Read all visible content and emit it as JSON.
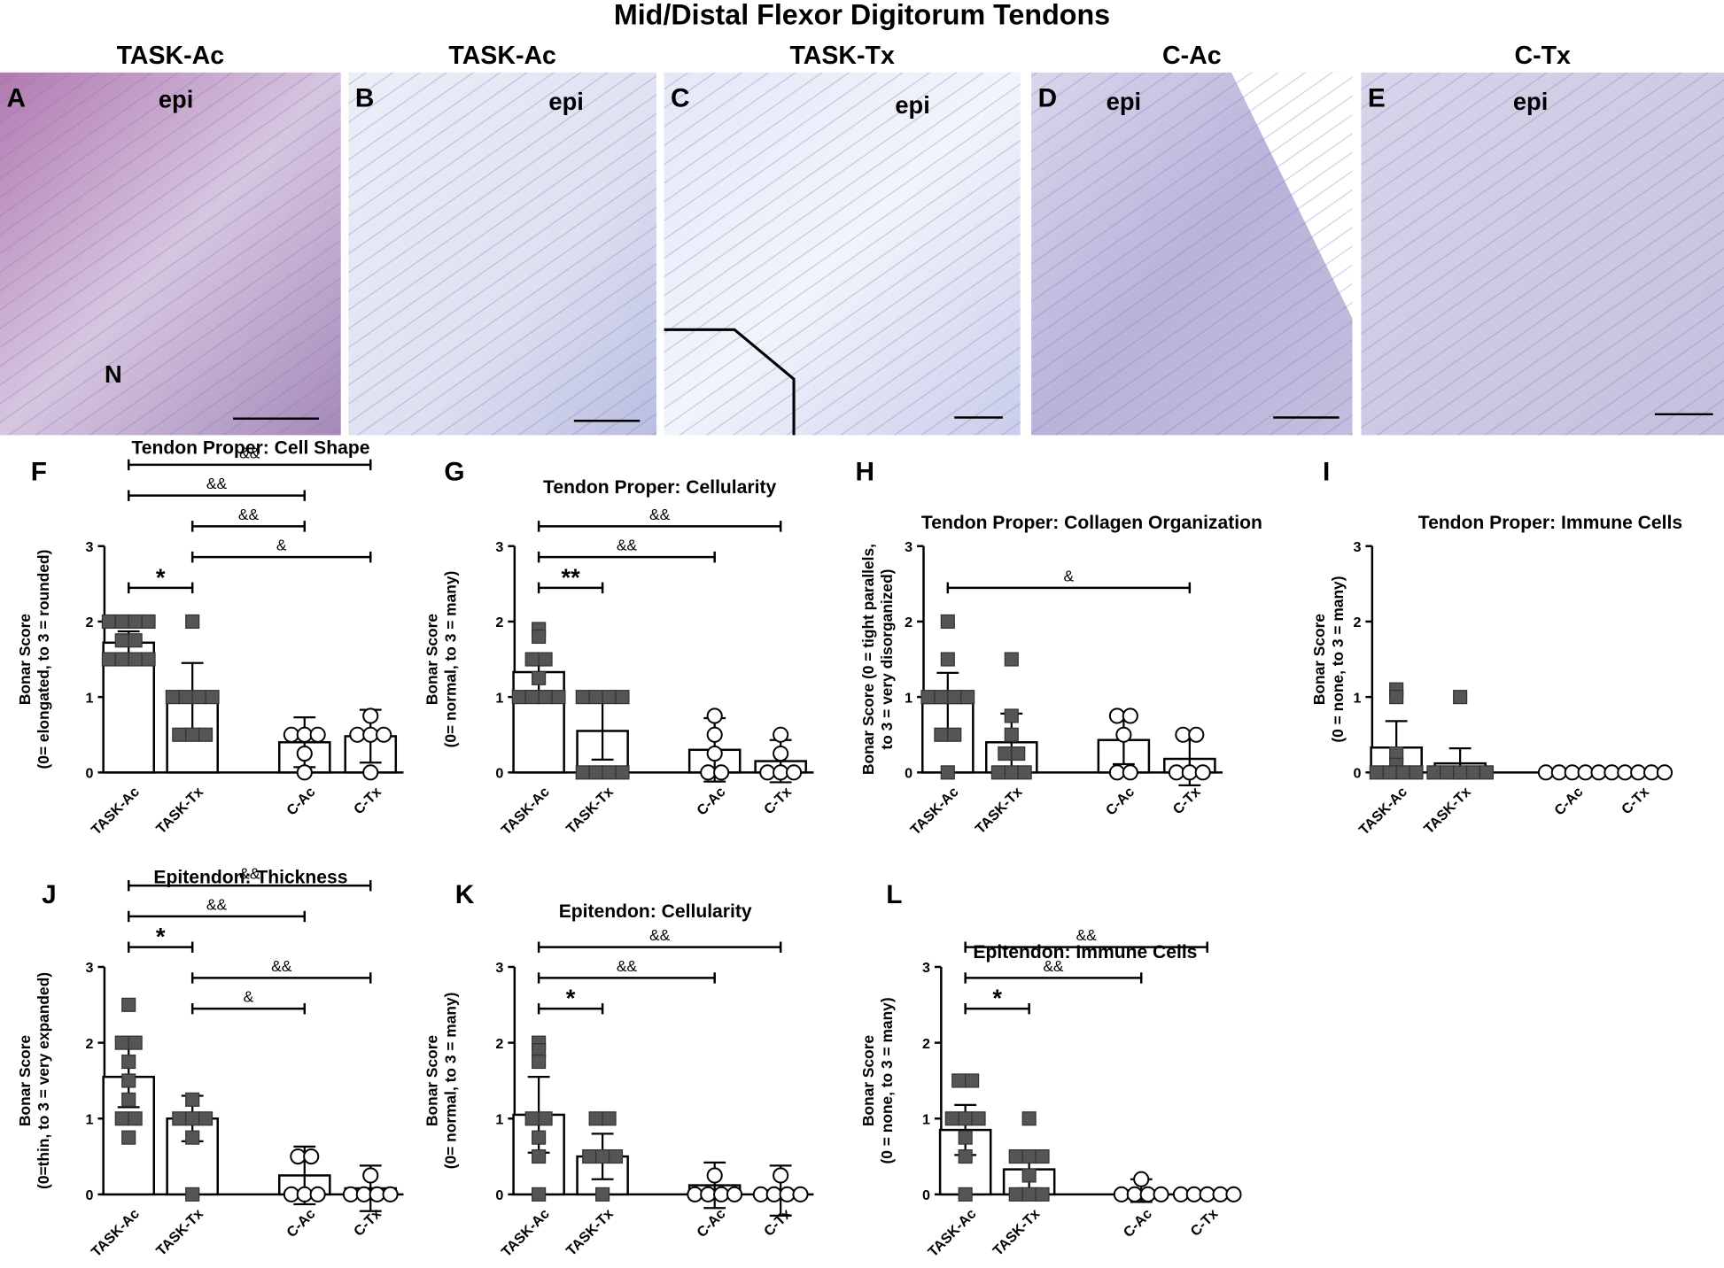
{
  "title": "Mid/Distal Flexor Digitorum Tendons",
  "image_panels": [
    {
      "letter": "A",
      "label": "TASK-Ac",
      "annotations": [
        "epi",
        "N"
      ]
    },
    {
      "letter": "B",
      "label": "TASK-Ac",
      "annotations": [
        "epi"
      ]
    },
    {
      "letter": "C",
      "label": "TASK-Tx",
      "annotations": [
        "epi"
      ]
    },
    {
      "letter": "D",
      "label": "C-Ac",
      "annotations": [
        "epi"
      ]
    },
    {
      "letter": "E",
      "label": "C-Tx",
      "annotations": [
        "epi"
      ]
    }
  ],
  "chart_data": [
    {
      "type": "bar",
      "letter": "F",
      "title": "Tendon Proper: Cell Shape",
      "ylabel": [
        "Bonar Score",
        "(0= elongated, to 3 = rounded)"
      ],
      "categories": [
        "TASK-Ac",
        "TASK-Tx",
        "C-Ac",
        "C-Tx"
      ],
      "values": [
        1.72,
        1.0,
        0.4,
        0.48
      ],
      "errors": [
        0.15,
        0.45,
        0.33,
        0.35
      ],
      "points": [
        [
          2,
          2,
          2,
          2,
          1.75,
          1.75,
          1.5,
          1.5,
          1.5,
          1.5
        ],
        [
          2,
          1,
          1,
          1,
          1,
          0.5,
          0.5,
          0.5
        ],
        [
          0.5,
          0.5,
          0.5,
          0.25,
          0
        ],
        [
          0.75,
          0.5,
          0.5,
          0.5,
          0
        ]
      ],
      "markers": [
        "square",
        "square",
        "circle",
        "circle"
      ],
      "comparisons": [
        {
          "from": 0,
          "to": 3,
          "label": "&&"
        },
        {
          "from": 0,
          "to": 2,
          "label": "&&"
        },
        {
          "from": 1,
          "to": 2,
          "label": "&&"
        },
        {
          "from": 1,
          "to": 3,
          "label": "&"
        },
        {
          "from": 0,
          "to": 1,
          "label": "*"
        }
      ],
      "ylim": [
        0,
        3
      ],
      "yticks": [
        0,
        1,
        2,
        3
      ]
    },
    {
      "type": "bar",
      "letter": "G",
      "title": "Tendon Proper: Cellularity",
      "ylabel": [
        "Bonar Score",
        "(0= normal, to 3 = many)"
      ],
      "categories": [
        "TASK-Ac",
        "TASK-Tx",
        "C-Ac",
        "C-Tx"
      ],
      "values": [
        1.33,
        0.55,
        0.3,
        0.15
      ],
      "errors": [
        0.25,
        0.38,
        0.42,
        0.28
      ],
      "points": [
        [
          1.9,
          1.8,
          1.5,
          1.5,
          1.25,
          1,
          1,
          1,
          1
        ],
        [
          1,
          1,
          1,
          1,
          0,
          0,
          0,
          0
        ],
        [
          0.75,
          0.5,
          0.25,
          0,
          0
        ],
        [
          0.5,
          0.25,
          0,
          0,
          0
        ]
      ],
      "markers": [
        "square",
        "square",
        "circle",
        "circle"
      ],
      "comparisons": [
        {
          "from": 0,
          "to": 3,
          "label": "&&"
        },
        {
          "from": 0,
          "to": 2,
          "label": "&&"
        },
        {
          "from": 0,
          "to": 1,
          "label": "**"
        }
      ],
      "ylim": [
        0,
        3
      ],
      "yticks": [
        0,
        1,
        2,
        3
      ]
    },
    {
      "type": "bar",
      "letter": "H",
      "title": "Tendon Proper: Collagen Organization",
      "ylabel": [
        "Bonar Score (0 = tight parallels,",
        "to 3 = very disorganized)"
      ],
      "categories": [
        "TASK-Ac",
        "TASK-Tx",
        "C-Ac",
        "C-Tx"
      ],
      "values": [
        0.92,
        0.4,
        0.43,
        0.18
      ],
      "errors": [
        0.4,
        0.38,
        0.32,
        0.35
      ],
      "points": [
        [
          2,
          1.5,
          1,
          1,
          1,
          1,
          0.5,
          0.5,
          0
        ],
        [
          1.5,
          0.75,
          0.5,
          0.25,
          0.25,
          0,
          0,
          0
        ],
        [
          0.75,
          0.75,
          0.5,
          0,
          0
        ],
        [
          0.5,
          0.5,
          0,
          0,
          0
        ]
      ],
      "markers": [
        "square",
        "square",
        "circle",
        "circle"
      ],
      "comparisons": [
        {
          "from": 0,
          "to": 3,
          "label": "&"
        }
      ],
      "ylim": [
        0,
        3
      ],
      "yticks": [
        0,
        1,
        2,
        3
      ]
    },
    {
      "type": "bar",
      "letter": "I",
      "title": "Tendon Proper:  Immune Cells",
      "ylabel": [
        "Bonar Score",
        "(0 = none, to 3 = many)"
      ],
      "categories": [
        "TASK-Ac",
        "TASK-Tx",
        "C-Ac",
        "C-Tx"
      ],
      "values": [
        0.33,
        0.12,
        0,
        0
      ],
      "errors": [
        0.35,
        0.2,
        0,
        0
      ],
      "points": [
        [
          1.1,
          1,
          0.25,
          0.1,
          0,
          0,
          0,
          0
        ],
        [
          1,
          0,
          0,
          0,
          0,
          0
        ],
        [
          0,
          0,
          0,
          0,
          0
        ],
        [
          0,
          0,
          0,
          0,
          0
        ]
      ],
      "markers": [
        "square",
        "square",
        "circle",
        "circle"
      ],
      "comparisons": [],
      "ylim": [
        0,
        3
      ],
      "yticks": [
        0,
        1,
        2,
        3
      ]
    },
    {
      "type": "bar",
      "letter": "J",
      "title": "Epitendon: Thickness",
      "ylabel": [
        "Bonar Score",
        "(0=thin, to 3 = very expanded)"
      ],
      "categories": [
        "TASK-Ac",
        "TASK-Tx",
        "C-Ac",
        "C-Tx"
      ],
      "values": [
        1.55,
        1.0,
        0.25,
        0.08
      ],
      "errors": [
        0.4,
        0.3,
        0.38,
        0.3
      ],
      "points": [
        [
          2.5,
          2,
          2,
          1.75,
          1.5,
          1.25,
          1,
          1,
          0.75
        ],
        [
          1.25,
          1,
          1,
          1,
          0.75,
          0
        ],
        [
          0.5,
          0.5,
          0,
          0,
          0
        ],
        [
          0.25,
          0,
          0,
          0,
          0
        ]
      ],
      "markers": [
        "square",
        "square",
        "circle",
        "circle"
      ],
      "comparisons": [
        {
          "from": 0,
          "to": 3,
          "label": "&&"
        },
        {
          "from": 0,
          "to": 2,
          "label": "&&"
        },
        {
          "from": 0,
          "to": 1,
          "label": "*"
        },
        {
          "from": 1,
          "to": 3,
          "label": "&&"
        },
        {
          "from": 1,
          "to": 2,
          "label": "&"
        }
      ],
      "ylim": [
        0,
        3
      ],
      "yticks": [
        0,
        1,
        2,
        3
      ]
    },
    {
      "type": "bar",
      "letter": "K",
      "title": "Epitendon: Cellularity",
      "ylabel": [
        "Bonar Score",
        "(0= normal, to 3 = many)"
      ],
      "categories": [
        "TASK-Ac",
        "TASK-Tx",
        "C-Ac",
        "C-Tx"
      ],
      "values": [
        1.05,
        0.5,
        0.12,
        0.05
      ],
      "errors": [
        0.5,
        0.3,
        0.3,
        0.33
      ],
      "points": [
        [
          2,
          1.9,
          1.75,
          1,
          1,
          0.75,
          0.5,
          0
        ],
        [
          1,
          1,
          0.5,
          0.5,
          0.5,
          0
        ],
        [
          0.25,
          0,
          0,
          0,
          0
        ],
        [
          0.25,
          0,
          0,
          0,
          0
        ]
      ],
      "markers": [
        "square",
        "square",
        "circle",
        "circle"
      ],
      "comparisons": [
        {
          "from": 0,
          "to": 3,
          "label": "&&"
        },
        {
          "from": 0,
          "to": 2,
          "label": "&&"
        },
        {
          "from": 0,
          "to": 1,
          "label": "*"
        }
      ],
      "ylim": [
        0,
        3
      ],
      "yticks": [
        0,
        1,
        2,
        3
      ]
    },
    {
      "type": "bar",
      "letter": "L",
      "title": "Epitendon: Immune Cells",
      "ylabel": [
        "Bonar Score",
        "(0 = none, to 3 = many)"
      ],
      "categories": [
        "TASK-Ac",
        "TASK-Tx",
        "C-Ac",
        "C-Tx"
      ],
      "values": [
        0.85,
        0.33,
        0.05,
        0
      ],
      "errors": [
        0.33,
        0.25,
        0.15,
        0
      ],
      "points": [
        [
          1.5,
          1.5,
          1,
          1,
          1,
          0.75,
          0.5,
          0
        ],
        [
          1,
          0.5,
          0.5,
          0.5,
          0.25,
          0,
          0,
          0
        ],
        [
          0.2,
          0,
          0,
          0,
          0
        ],
        [
          0,
          0,
          0,
          0,
          0
        ]
      ],
      "markers": [
        "square",
        "square",
        "circle",
        "circle"
      ],
      "comparisons": [
        {
          "from": 0,
          "to": 3,
          "label": "&&"
        },
        {
          "from": 0,
          "to": 2,
          "label": "&&"
        },
        {
          "from": 0,
          "to": 1,
          "label": "*"
        }
      ],
      "ylim": [
        0,
        3
      ],
      "yticks": [
        0,
        1,
        2,
        3
      ]
    }
  ]
}
